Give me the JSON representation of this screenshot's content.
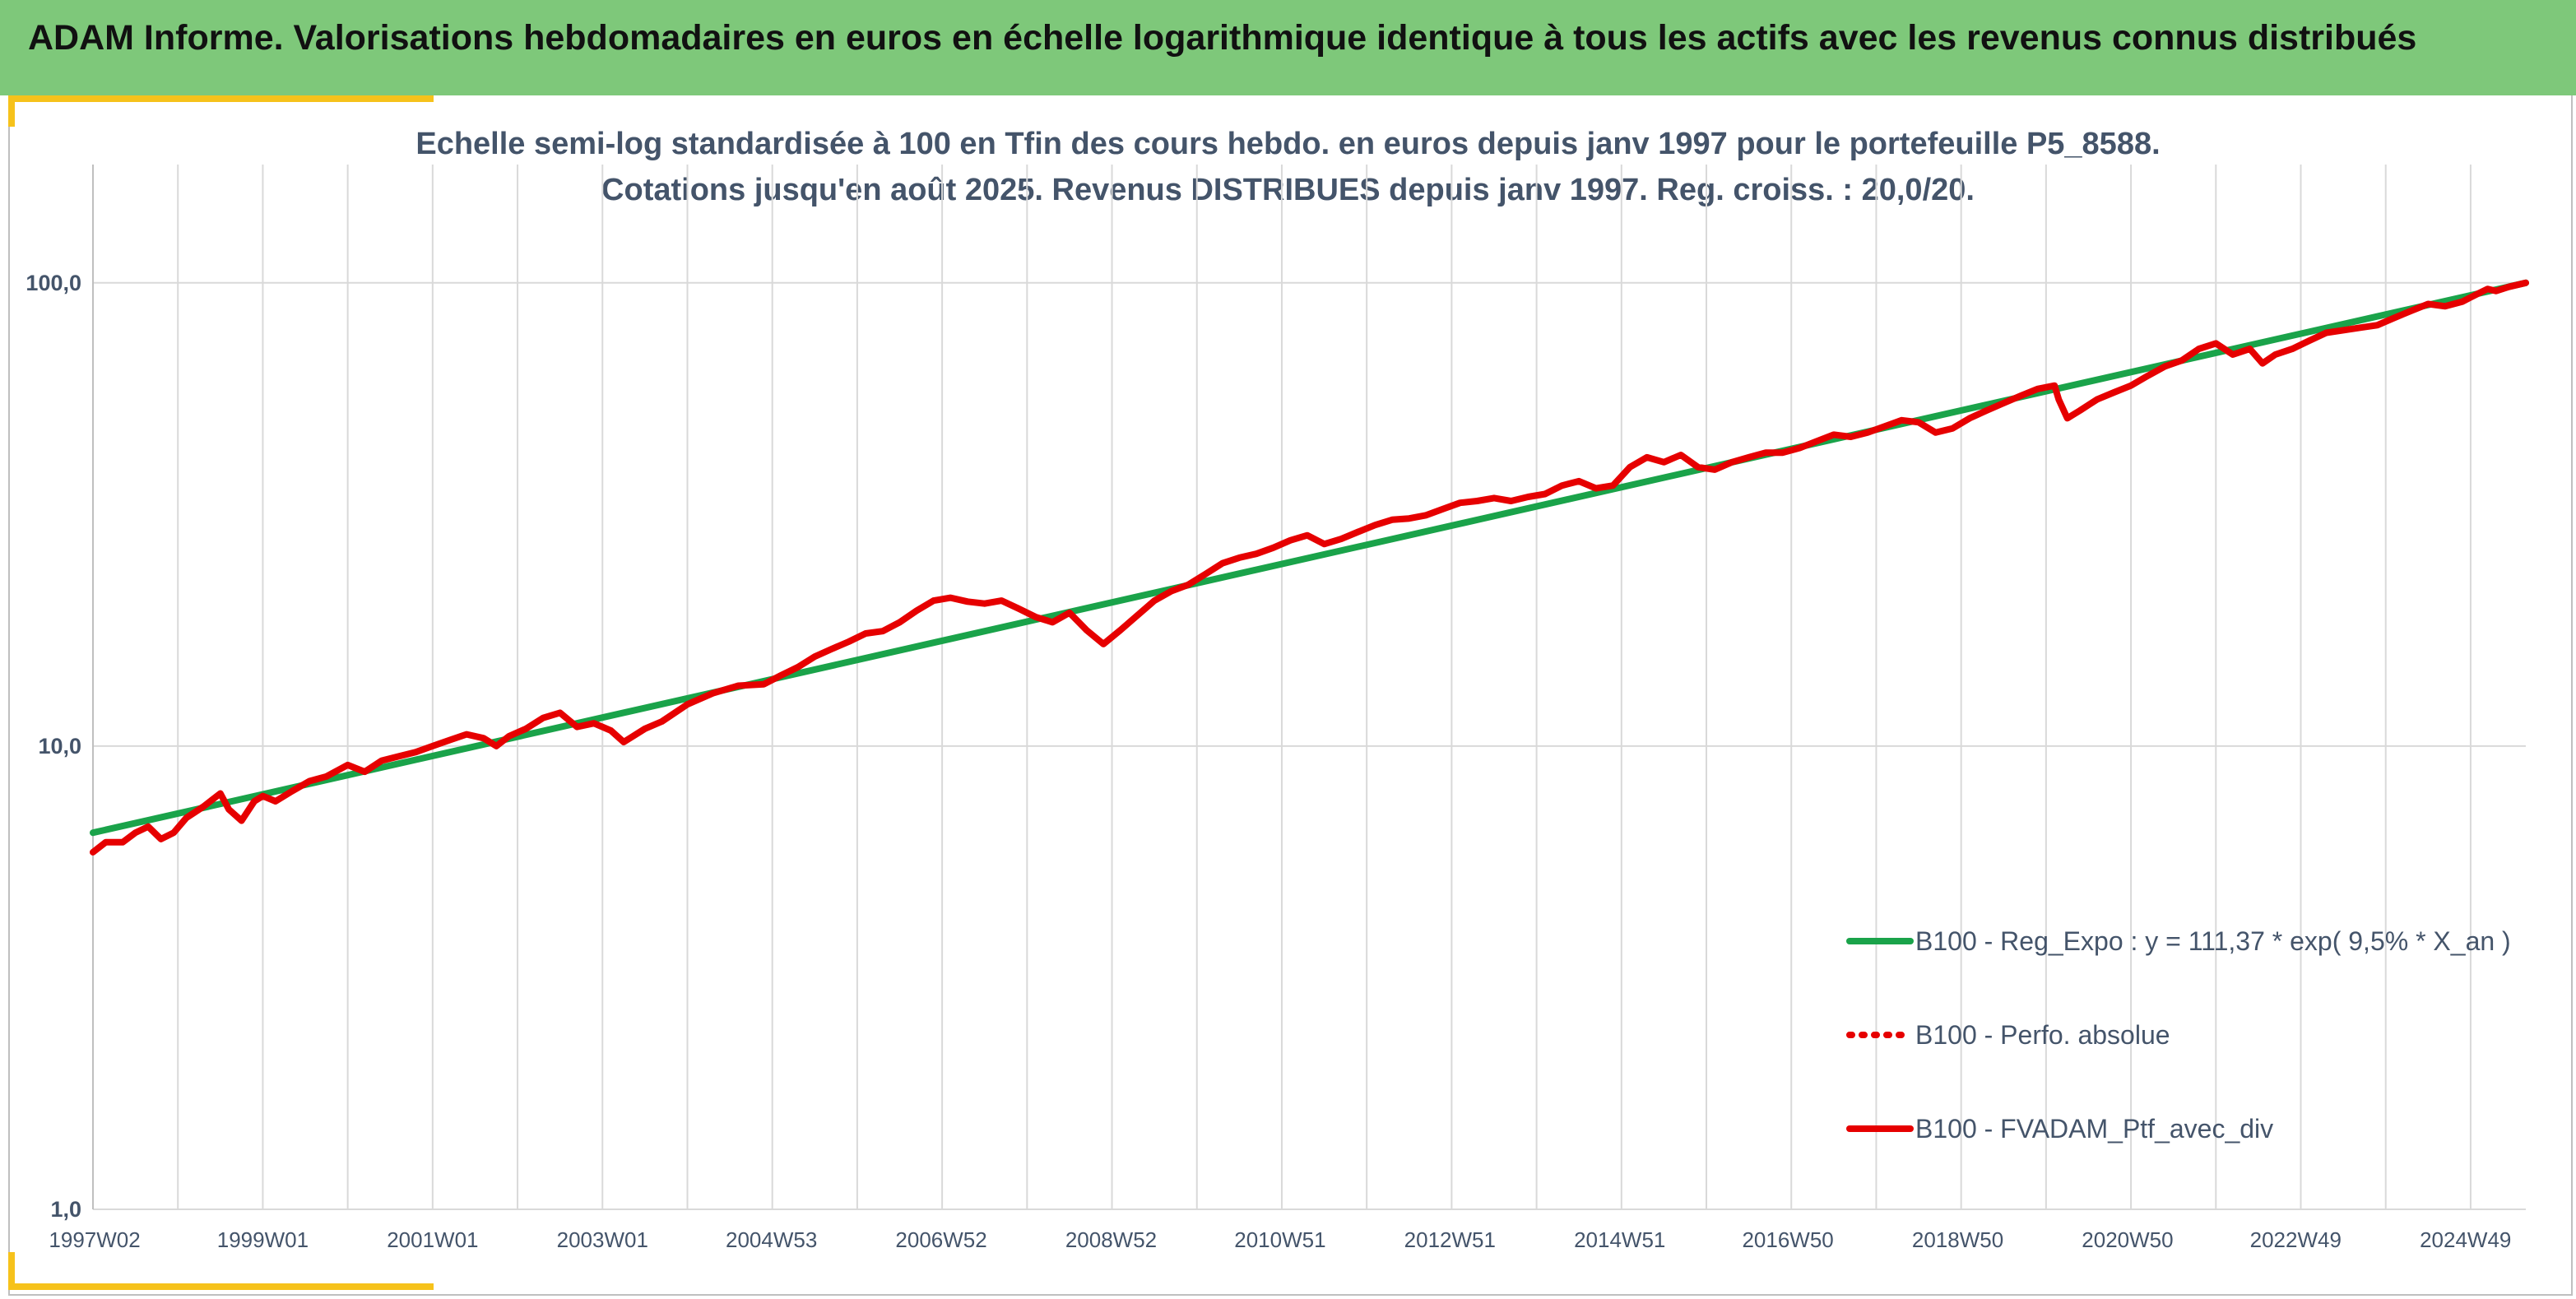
{
  "header": {
    "title": "ADAM Informe. Valorisations hebdomadaires en euros en échelle logarithmique identique à tous les actifs avec les revenus connus distribués"
  },
  "colors": {
    "header_band": "#7ec87a",
    "accent": "#f6c21b",
    "regression_line": "#1aa34a",
    "portfolio_line": "#e60000"
  },
  "chart_data": {
    "type": "line",
    "subtitle_line1": "Echelle semi-log standardisée à 100 en Tfin des cours hebdo. en euros depuis janv 1997 pour le portefeuille P5_8588.",
    "subtitle_line2": "Cotations jusqu'en août 2025. Revenus DISTRIBUES depuis janv 1997. Reg. croiss. : 20,0/20.",
    "y_scale": "log",
    "ylim": [
      1,
      180
    ],
    "y_ticks": [
      {
        "value": 100,
        "label": "100,0"
      },
      {
        "value": 10,
        "label": "10,0"
      },
      {
        "value": 1,
        "label": "1,0"
      }
    ],
    "x_range": [
      1997.0,
      2025.65
    ],
    "x_ticks": [
      {
        "value": 1997.02,
        "label": "1997W02"
      },
      {
        "value": 1999.0,
        "label": "1999W01"
      },
      {
        "value": 2001.0,
        "label": "2001W01"
      },
      {
        "value": 2003.0,
        "label": "2003W01"
      },
      {
        "value": 2004.99,
        "label": "2004W53"
      },
      {
        "value": 2006.99,
        "label": "2006W52"
      },
      {
        "value": 2008.99,
        "label": "2008W52"
      },
      {
        "value": 2010.98,
        "label": "2010W51"
      },
      {
        "value": 2012.98,
        "label": "2012W51"
      },
      {
        "value": 2014.98,
        "label": "2014W51"
      },
      {
        "value": 2016.96,
        "label": "2016W50"
      },
      {
        "value": 2018.96,
        "label": "2018W50"
      },
      {
        "value": 2020.96,
        "label": "2020W50"
      },
      {
        "value": 2022.94,
        "label": "2022W49"
      },
      {
        "value": 2024.94,
        "label": "2024W49"
      }
    ],
    "vertical_grid_years": [
      1997.0,
      1998.0,
      1999.0,
      2000.0,
      2001.0,
      2002.0,
      2003.0,
      2004.0,
      2005.0,
      2006.0,
      2007.0,
      2008.0,
      2009.0,
      2010.0,
      2011.0,
      2012.0,
      2013.0,
      2014.0,
      2015.0,
      2016.0,
      2017.0,
      2018.0,
      2019.0,
      2020.0,
      2021.0,
      2022.0,
      2023.0,
      2024.0,
      2025.0
    ],
    "grid": true,
    "legend_position": "right",
    "series": [
      {
        "name": "B100 - Reg_Expo : y = 111,37 * exp( 9,5% *  X_an )",
        "style": "solid",
        "color": "#1aa34a",
        "x": [
          1997.0,
          2025.65
        ],
        "y": [
          6.5,
          100.0
        ]
      },
      {
        "name": "B100 - Perfo. absolue",
        "style": "dotted",
        "color": "#e60000",
        "x": [],
        "y": []
      },
      {
        "name": "B100 - FVADAM_Ptf_avec_div",
        "style": "solid",
        "color": "#e60000",
        "x": [
          1997.0,
          1997.15,
          1997.35,
          1997.5,
          1997.65,
          1997.8,
          1997.95,
          1998.1,
          1998.3,
          1998.5,
          1998.6,
          1998.75,
          1998.9,
          1999.0,
          1999.15,
          1999.35,
          1999.55,
          1999.75,
          2000.0,
          2000.2,
          2000.4,
          2000.6,
          2000.8,
          2001.0,
          2001.2,
          2001.4,
          2001.6,
          2001.75,
          2001.9,
          2002.1,
          2002.3,
          2002.5,
          2002.7,
          2002.9,
          2003.1,
          2003.25,
          2003.5,
          2003.7,
          2004.0,
          2004.3,
          2004.6,
          2004.9,
          2005.1,
          2005.3,
          2005.5,
          2005.7,
          2005.9,
          2006.1,
          2006.3,
          2006.5,
          2006.7,
          2006.9,
          2007.1,
          2007.3,
          2007.5,
          2007.7,
          2007.9,
          2008.1,
          2008.3,
          2008.5,
          2008.7,
          2008.9,
          2009.1,
          2009.25,
          2009.5,
          2009.7,
          2009.9,
          2010.1,
          2010.3,
          2010.5,
          2010.7,
          2010.9,
          2011.1,
          2011.3,
          2011.5,
          2011.7,
          2011.9,
          2012.1,
          2012.3,
          2012.5,
          2012.7,
          2012.9,
          2013.1,
          2013.3,
          2013.5,
          2013.7,
          2013.9,
          2014.1,
          2014.3,
          2014.5,
          2014.7,
          2014.9,
          2015.1,
          2015.3,
          2015.5,
          2015.7,
          2015.9,
          2016.1,
          2016.3,
          2016.5,
          2016.7,
          2016.9,
          2017.1,
          2017.3,
          2017.5,
          2017.7,
          2017.9,
          2018.1,
          2018.3,
          2018.5,
          2018.7,
          2018.9,
          2019.1,
          2019.3,
          2019.5,
          2019.7,
          2019.9,
          2020.1,
          2020.15,
          2020.25,
          2020.4,
          2020.6,
          2020.8,
          2021.0,
          2021.2,
          2021.4,
          2021.6,
          2021.8,
          2022.0,
          2022.2,
          2022.4,
          2022.55,
          2022.7,
          2022.9,
          2023.1,
          2023.3,
          2023.5,
          2023.7,
          2023.9,
          2024.1,
          2024.3,
          2024.5,
          2024.7,
          2024.9,
          2025.0,
          2025.1,
          2025.2,
          2025.3,
          2025.45,
          2025.65
        ],
        "y": [
          5.9,
          6.2,
          6.2,
          6.5,
          6.7,
          6.3,
          6.5,
          7.0,
          7.4,
          7.9,
          7.3,
          6.9,
          7.6,
          7.8,
          7.6,
          8.0,
          8.4,
          8.6,
          9.1,
          8.8,
          9.3,
          9.5,
          9.7,
          10.0,
          10.3,
          10.6,
          10.4,
          10.0,
          10.5,
          10.9,
          11.5,
          11.8,
          11.0,
          11.2,
          10.8,
          10.2,
          10.9,
          11.3,
          12.3,
          13.0,
          13.5,
          13.6,
          14.2,
          14.8,
          15.6,
          16.2,
          16.8,
          17.5,
          17.7,
          18.5,
          19.6,
          20.6,
          20.9,
          20.5,
          20.3,
          20.6,
          19.8,
          19.0,
          18.5,
          19.4,
          17.8,
          16.6,
          17.8,
          18.8,
          20.6,
          21.6,
          22.3,
          23.5,
          24.8,
          25.5,
          26.0,
          26.8,
          27.8,
          28.5,
          27.3,
          28.0,
          29.0,
          30.0,
          30.8,
          31.0,
          31.5,
          32.5,
          33.5,
          33.8,
          34.3,
          33.8,
          34.5,
          35.0,
          36.5,
          37.3,
          36.0,
          36.5,
          40.0,
          42.0,
          41.0,
          42.5,
          40.0,
          39.5,
          41.0,
          42.0,
          43.0,
          43.0,
          44.0,
          45.5,
          47.0,
          46.5,
          47.5,
          49.0,
          50.5,
          50.0,
          47.5,
          48.5,
          51.0,
          53.0,
          55.0,
          57.0,
          59.0,
          60.0,
          56.0,
          51.0,
          53.0,
          56.0,
          58.0,
          60.0,
          63.0,
          66.0,
          68.0,
          72.0,
          74.0,
          70.0,
          72.0,
          67.0,
          70.0,
          72.0,
          75.0,
          78.0,
          79.0,
          80.0,
          81.0,
          84.0,
          87.0,
          90.0,
          89.0,
          91.0,
          93.0,
          95.0,
          97.0,
          96.0,
          98.0,
          100.0
        ]
      }
    ]
  }
}
